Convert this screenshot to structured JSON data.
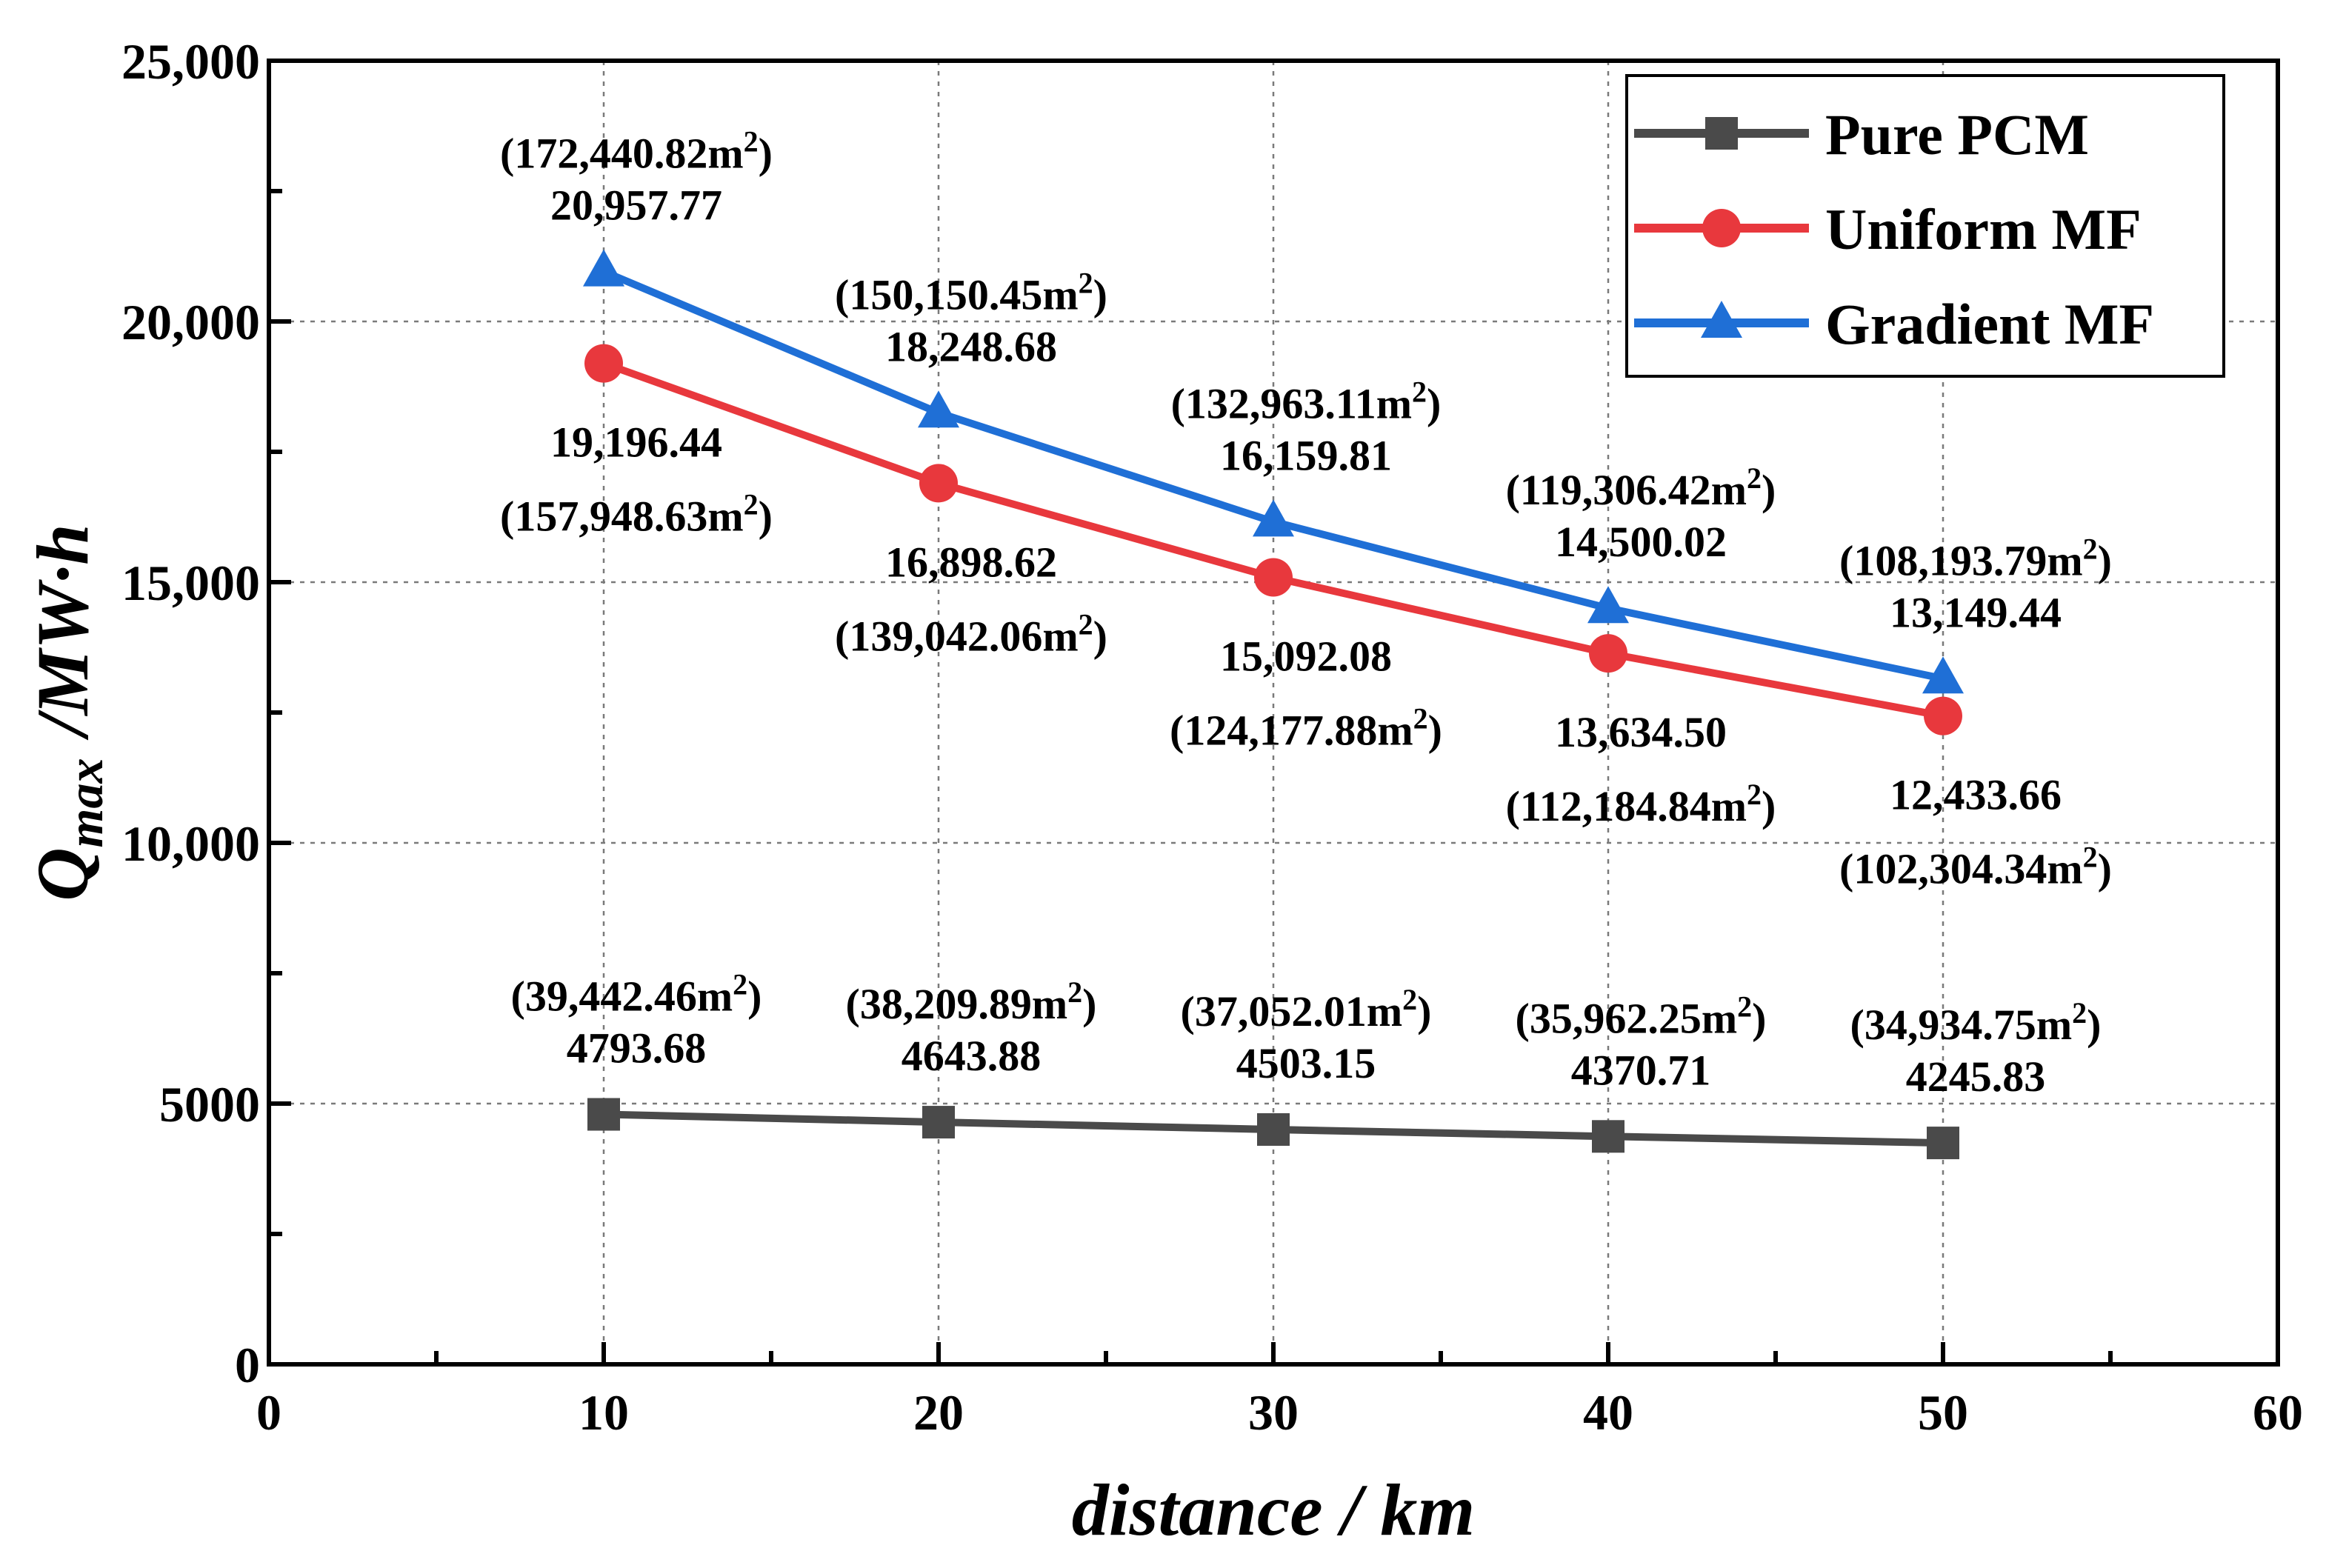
{
  "chart_data": {
    "type": "line",
    "title": "",
    "xlabel": "distance / km",
    "ylabel": "Q",
    "ylabel_sub": "max",
    "ylabel_unit": "/MW·h",
    "xlim": [
      0,
      60
    ],
    "ylim": [
      0,
      25000
    ],
    "xticks": [
      0,
      10,
      20,
      30,
      40,
      50,
      60
    ],
    "xtick_labels": [
      "0",
      "10",
      "20",
      "30",
      "40",
      "50",
      "60"
    ],
    "yticks": [
      0,
      5000,
      10000,
      15000,
      20000,
      25000
    ],
    "ytick_labels": [
      "0",
      "5000",
      "10,000",
      "15,000",
      "20,000",
      "25,000"
    ],
    "grid": true,
    "legend_position": "top-right",
    "x": [
      10,
      20,
      30,
      40,
      50
    ],
    "series": [
      {
        "name": "Pure PCM",
        "color": "#4a4a4a",
        "marker": "square",
        "values": [
          4793.68,
          4643.88,
          4503.15,
          4370.71,
          4245.83
        ],
        "value_labels": [
          "4793.68",
          "4643.88",
          "4503.15",
          "4370.71",
          "4245.83"
        ],
        "area_labels": [
          "(39,442.46m",
          "(38,209.89m",
          "(37,052.01m",
          "(35,962.25m",
          "(34,934.75m"
        ],
        "label_side": "above"
      },
      {
        "name": "Uniform MF",
        "color": "#e8383d",
        "marker": "circle",
        "values": [
          19196.44,
          16898.62,
          15092.08,
          13634.5,
          12433.66
        ],
        "value_labels": [
          "19,196.44",
          "16,898.62",
          "15,092.08",
          "13,634.50",
          "12,433.66"
        ],
        "area_labels": [
          "(157,948.63m",
          "(139,042.06m",
          "(124,177.88m",
          "(112,184.84m",
          "(102,304.34m"
        ],
        "label_side": "below"
      },
      {
        "name": "Gradient MF",
        "color": "#1f6fd6",
        "marker": "triangle",
        "values": [
          20957.77,
          18248.68,
          16159.81,
          14500.02,
          13149.44
        ],
        "value_labels": [
          "20,957.77",
          "18,248.68",
          "16,159.81",
          "14,500.02",
          "13,149.44"
        ],
        "area_labels": [
          "(172,440.82m",
          "(150,150.45m",
          "(132,963.11m",
          "(119,306.42m",
          "(108,193.79m"
        ],
        "label_side": "above"
      }
    ],
    "area_unit_sup": "2",
    "area_unit_close": ")"
  }
}
